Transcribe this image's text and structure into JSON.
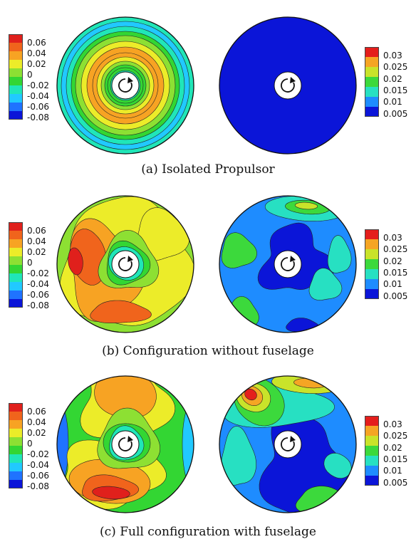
{
  "colors": {
    "diverging": [
      "#0b15d8",
      "#1f73ff",
      "#21c9ff",
      "#20e6b8",
      "#33d633",
      "#8de033",
      "#ecec29",
      "#f7a323",
      "#f0641c",
      "#e0201c"
    ],
    "sequential": [
      "#0b15d8",
      "#1e8cff",
      "#27e0c2",
      "#3cd93c",
      "#c9e32a",
      "#f5a524",
      "#e41e1c"
    ],
    "background": "#ffffff",
    "outline": "#111111"
  },
  "colorbars": {
    "left": [
      "0.06",
      "0.04",
      "0.02",
      "0",
      "-0.02",
      "-0.04",
      "-0.06",
      "-0.08"
    ],
    "right": [
      "0.03",
      "0.025",
      "0.02",
      "0.015",
      "0.01",
      "0.005"
    ]
  },
  "panels": [
    {
      "caption": "(a) Isolated Propulsor",
      "left_pattern": "rings",
      "right_pattern": "uniform"
    },
    {
      "caption": "(b) Configuration without fuselage",
      "left_pattern": "swirl",
      "right_pattern": "patchy"
    },
    {
      "caption": "(c) Full configuration with fuselage",
      "left_pattern": "swirl-strong",
      "right_pattern": "patchy-strong"
    }
  ],
  "icons": {
    "hub": "rotation-arrow-icon"
  }
}
